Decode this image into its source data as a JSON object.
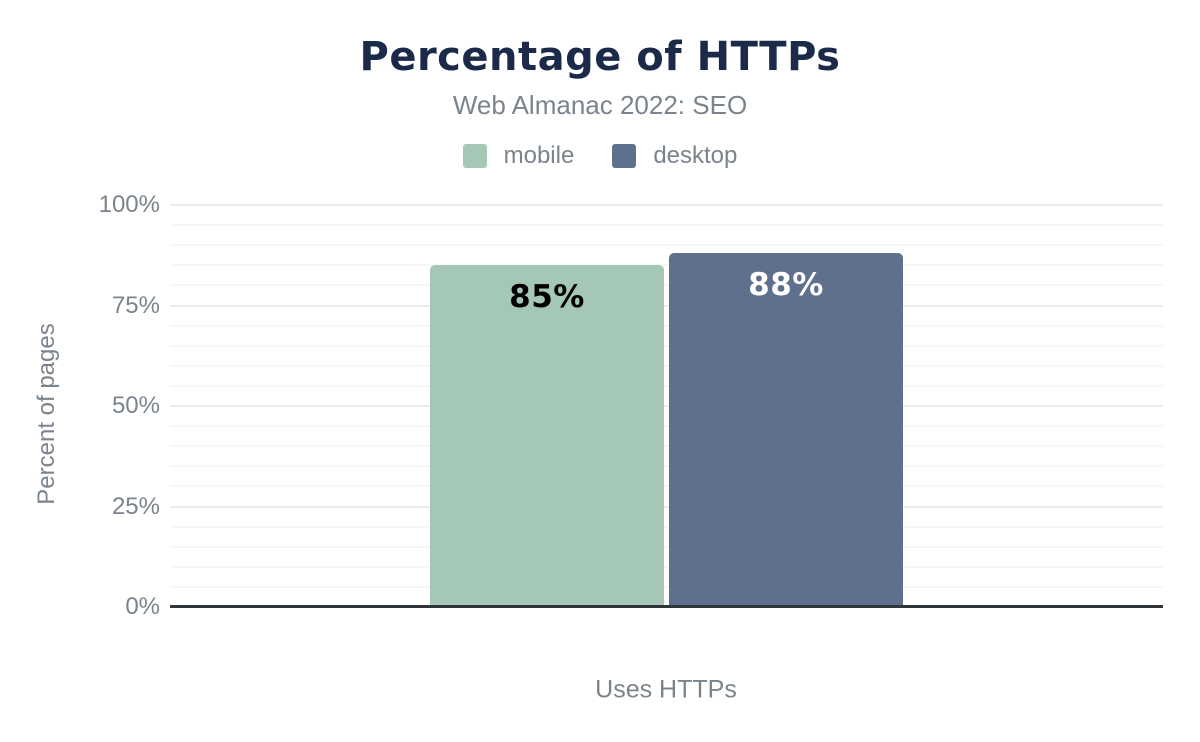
{
  "chart_data": {
    "type": "bar",
    "title": "Percentage of HTTPs",
    "subtitle": "Web Almanac 2022: SEO",
    "xlabel": "Uses HTTPs",
    "ylabel": "Percent of pages",
    "categories": [
      "Uses HTTPs"
    ],
    "series": [
      {
        "name": "mobile",
        "values": [
          85
        ],
        "label": "85%",
        "color": "#a4c8b5",
        "label_color": "#000000"
      },
      {
        "name": "desktop",
        "values": [
          88
        ],
        "label": "88%",
        "color": "#5e708e",
        "label_color": "#ffffff"
      }
    ],
    "ylim": [
      0,
      100
    ],
    "yticks": [
      {
        "value": 0,
        "label": "0%"
      },
      {
        "value": 25,
        "label": "25%"
      },
      {
        "value": 50,
        "label": "50%"
      },
      {
        "value": 75,
        "label": "75%"
      },
      {
        "value": 100,
        "label": "100%"
      }
    ],
    "grid": {
      "minor_step": 5,
      "major_step": 25,
      "minor_color": "#f6f6f6",
      "major_color": "#ebebeb"
    },
    "legend_position": "top",
    "colors": {
      "title": "#1c2a49",
      "text_gray": "#7b848d",
      "axis_line": "#30353a",
      "background": "#ffffff"
    }
  }
}
